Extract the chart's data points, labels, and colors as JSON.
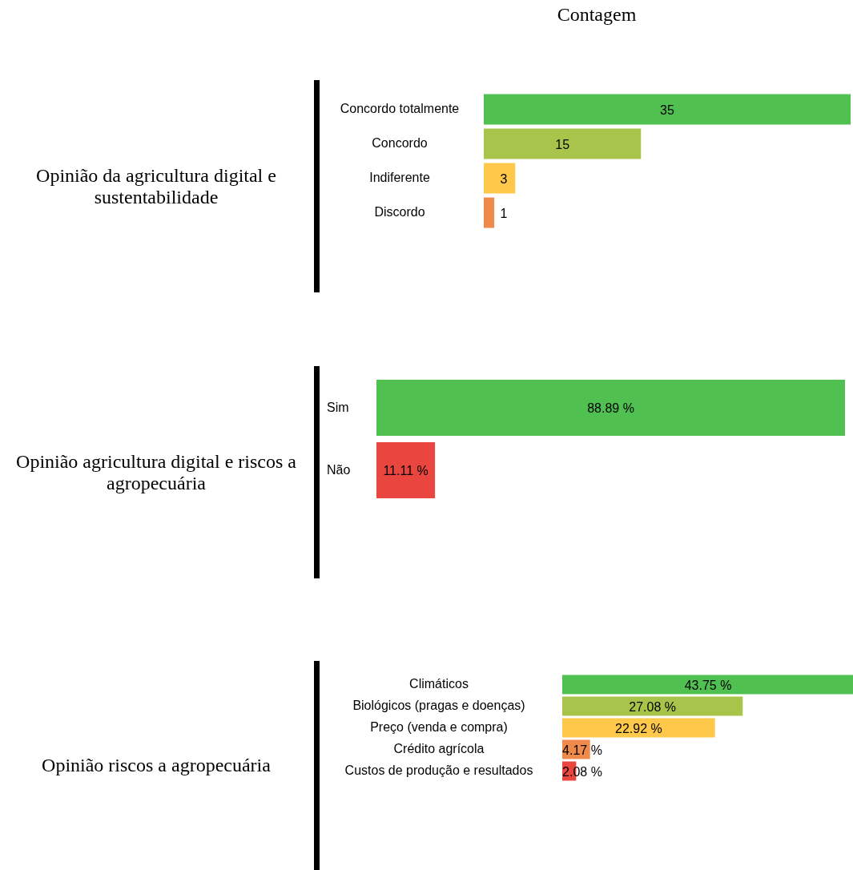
{
  "chart_data": [
    {
      "type": "bar",
      "orientation": "horizontal",
      "title": "Opinião da agricultura digital e sustentabilidade",
      "annotations": [
        "Contagem"
      ],
      "categories": [
        "Concordo totalmente",
        "Concordo",
        "Indiferente",
        "Discordo"
      ],
      "values": [
        35,
        15,
        3,
        1
      ],
      "colors": [
        "#50c150",
        "#a9c44b",
        "#fec84b",
        "#f08a4b"
      ],
      "data_labels": true
    },
    {
      "type": "bar",
      "orientation": "horizontal",
      "title": "Opinião agricultura digital e riscos a agropecuária",
      "categories": [
        "Sim",
        "Não"
      ],
      "values": [
        88.89,
        11.11
      ],
      "colors": [
        "#50c150",
        "#ea4640"
      ],
      "value_labels": [
        "88.89 %",
        "11.11 %"
      ]
    },
    {
      "type": "bar",
      "orientation": "horizontal",
      "title": "Opinião riscos a agropecuária",
      "categories": [
        "Climáticos",
        "Biológicos (pragas e doenças)",
        "Preço (venda e compra)",
        "Crédito agrícola",
        "Custos de produção e resultados"
      ],
      "values": [
        43.75,
        27.08,
        22.92,
        4.17,
        2.08
      ],
      "colors": [
        "#50c150",
        "#a9c44b",
        "#fec84b",
        "#f08a4b",
        "#ea4640"
      ],
      "value_labels": [
        "43.75 %",
        "27.08 %",
        "22.92 %",
        "4.17 %",
        "2.08 %"
      ]
    }
  ]
}
